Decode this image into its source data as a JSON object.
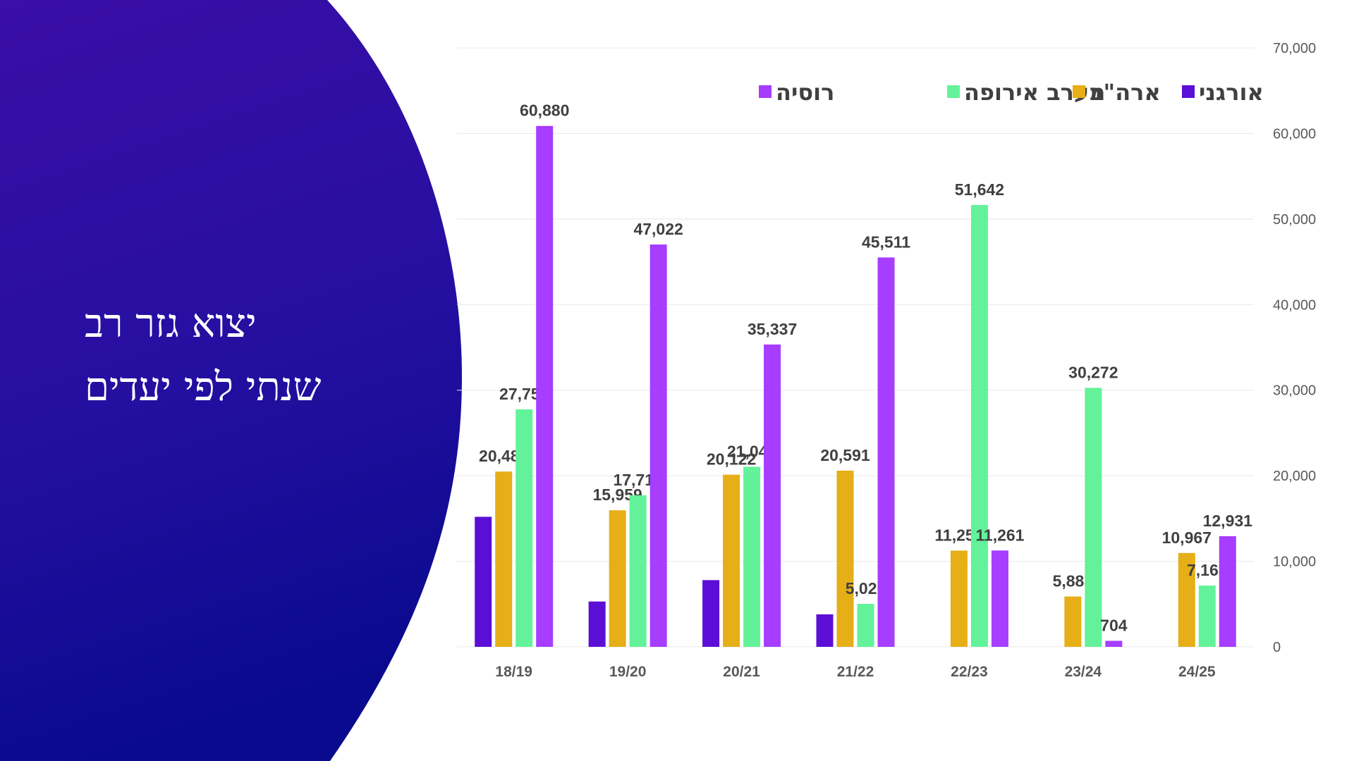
{
  "slide": {
    "title_lines": [
      "יצוא גזר רב",
      "שנתי לפי יעדים"
    ],
    "colors": {
      "background_left": "#3a0ea8",
      "background_dark": "#0a0a8f",
      "title_text": "#ffffff"
    }
  },
  "chart_data": {
    "type": "bar",
    "categories": [
      "18/19",
      "19/20",
      "20/21",
      "21/22",
      "22/23",
      "23/24",
      "24/25"
    ],
    "series": [
      {
        "name": "אורגני",
        "color": "#5b0fd6",
        "values": [
          15200,
          5300,
          7800,
          3800,
          null,
          null,
          null
        ],
        "labels": [
          null,
          null,
          null,
          null,
          null,
          null,
          null
        ]
      },
      {
        "name": "ארה\"ב",
        "color": "#e6ae17",
        "values": [
          20489,
          15959,
          20122,
          20591,
          11252,
          5883,
          10967
        ],
        "labels": [
          "20,489",
          "15,959",
          "20,122",
          "20,591",
          "11,252",
          "5,883",
          "10,967"
        ]
      },
      {
        "name": "מערב אירופה",
        "color": "#63f29a",
        "values": [
          27756,
          17715,
          21047,
          5026,
          51642,
          30272,
          7163
        ],
        "labels": [
          "27,756",
          "17,715",
          "21,047",
          "5,026",
          "51,642",
          "30,272",
          "7,163"
        ]
      },
      {
        "name": "רוסיה",
        "color": "#a63dff",
        "values": [
          60880,
          47022,
          35337,
          45511,
          11261,
          704,
          12931
        ],
        "labels": [
          "60,880",
          "47,022",
          "35,337",
          "45,511",
          "11,261",
          "704",
          "12,931"
        ]
      }
    ],
    "y_axis": {
      "position": "right",
      "ylim": [
        0,
        70000
      ],
      "ticks": [
        "0",
        "10,000",
        "20,000",
        "30,000",
        "40,000",
        "50,000",
        "60,000",
        "70,000"
      ]
    },
    "grid": true,
    "legend": {
      "placement": "top",
      "order": [
        "רוסיה",
        "מערב אירופה",
        "ארה\"ב",
        "אורגני"
      ]
    },
    "colors": {
      "label_text": "#404040",
      "tick_text": "#595959",
      "grid": "#e8e8e8"
    }
  }
}
